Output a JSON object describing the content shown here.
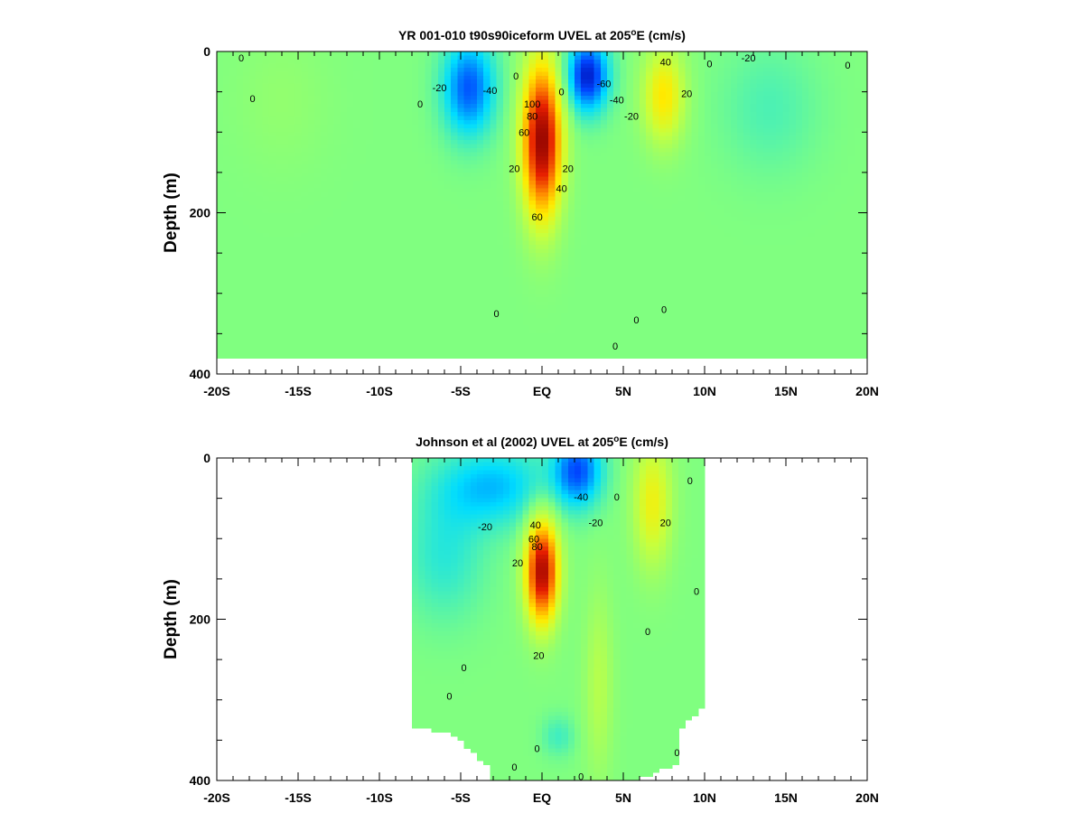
{
  "chart_data": [
    {
      "type": "heatmap",
      "title_main": "YR 001-010 t90s90iceform UVEL at 205",
      "title_sup": "o",
      "title_tail": "E (cm/s)",
      "ylabel": "Depth (m)",
      "x_ticks": [
        "-20S",
        "-15S",
        "-10S",
        "-5S",
        "EQ",
        "5N",
        "10N",
        "15N",
        "20N"
      ],
      "y_ticks": [
        "0",
        "200",
        "400"
      ],
      "xlim": [
        -20,
        20
      ],
      "ylim": [
        0,
        400
      ],
      "y_inverted": true,
      "data_max_depth": 380,
      "features": [
        {
          "label": "equatorial undercurrent",
          "lat": 0,
          "depth": 110,
          "sx": 1.2,
          "sz": 95,
          "v": 115
        },
        {
          "label": "south equatorial current south",
          "lat": -4.5,
          "depth": 45,
          "sx": 1.6,
          "sz": 60,
          "v": -55
        },
        {
          "label": "south equatorial current north",
          "lat": 2.8,
          "depth": 30,
          "sx": 1.3,
          "sz": 45,
          "v": -70
        },
        {
          "label": "north equatorial countercurrent",
          "lat": 7.5,
          "depth": 55,
          "sx": 1.3,
          "sz": 60,
          "v": 45
        },
        {
          "label": "weak westward 14N",
          "lat": 14,
          "depth": 70,
          "sx": 3,
          "sz": 80,
          "v": -12
        },
        {
          "label": "weak eastward 16S",
          "lat": -16,
          "depth": 60,
          "sx": 3,
          "sz": 90,
          "v": 6
        }
      ],
      "contour_labels": [
        {
          "text": "0",
          "lat": -18.5,
          "depth": 8
        },
        {
          "text": "0",
          "lat": -17.8,
          "depth": 58
        },
        {
          "text": "-20",
          "lat": -6.3,
          "depth": 45
        },
        {
          "text": "-40",
          "lat": -3.2,
          "depth": 48
        },
        {
          "text": "0",
          "lat": -7.5,
          "depth": 65
        },
        {
          "text": "0",
          "lat": -1.6,
          "depth": 30
        },
        {
          "text": "100",
          "lat": -0.6,
          "depth": 65
        },
        {
          "text": "80",
          "lat": -0.6,
          "depth": 80
        },
        {
          "text": "60",
          "lat": -1.1,
          "depth": 100
        },
        {
          "text": "20",
          "lat": -1.7,
          "depth": 145
        },
        {
          "text": "20",
          "lat": 1.6,
          "depth": 145
        },
        {
          "text": "40",
          "lat": 1.2,
          "depth": 170
        },
        {
          "text": "60",
          "lat": -0.3,
          "depth": 205
        },
        {
          "text": "0",
          "lat": 1.2,
          "depth": 50
        },
        {
          "text": "-60",
          "lat": 3.8,
          "depth": 40
        },
        {
          "text": "-40",
          "lat": 4.6,
          "depth": 60
        },
        {
          "text": "-20",
          "lat": 5.5,
          "depth": 80
        },
        {
          "text": "40",
          "lat": 7.6,
          "depth": 13
        },
        {
          "text": "20",
          "lat": 8.9,
          "depth": 52
        },
        {
          "text": "-20",
          "lat": 12.7,
          "depth": 8
        },
        {
          "text": "0",
          "lat": 18.8,
          "depth": 17
        },
        {
          "text": "0",
          "lat": 10.3,
          "depth": 15
        },
        {
          "text": "0",
          "lat": -2.8,
          "depth": 325
        },
        {
          "text": "0",
          "lat": 5.8,
          "depth": 333
        },
        {
          "text": "0",
          "lat": 7.5,
          "depth": 320
        },
        {
          "text": "0",
          "lat": 4.5,
          "depth": 365
        }
      ]
    },
    {
      "type": "heatmap",
      "title_main": "Johnson et al (2002) UVEL at 205",
      "title_sup": "o",
      "title_tail": "E (cm/s)",
      "ylabel": "Depth (m)",
      "x_ticks": [
        "-20S",
        "-15S",
        "-10S",
        "-5S",
        "EQ",
        "5N",
        "10N",
        "15N",
        "20N"
      ],
      "y_ticks": [
        "0",
        "200",
        "400"
      ],
      "xlim": [
        -20,
        20
      ],
      "ylim": [
        0,
        400
      ],
      "y_inverted": true,
      "data_lat_range": [
        -8,
        10
      ],
      "features": [
        {
          "label": "equatorial undercurrent",
          "lat": 0,
          "depth": 140,
          "sx": 1.0,
          "sz": 65,
          "v": 110
        },
        {
          "label": "south equatorial current north",
          "lat": 2.2,
          "depth": 15,
          "sx": 1.5,
          "sz": 45,
          "v": -55
        },
        {
          "label": "south equatorial current south",
          "lat": -3,
          "depth": 35,
          "sx": 3.5,
          "sz": 50,
          "v": -35
        },
        {
          "label": "north equatorial countercurrent",
          "lat": 6.8,
          "depth": 55,
          "sx": 1.2,
          "sz": 80,
          "v": 38
        },
        {
          "label": "yellow tongue",
          "lat": 3.5,
          "depth": 280,
          "sx": 0.9,
          "sz": 120,
          "v": 18
        },
        {
          "label": "cool patch",
          "lat": 1,
          "depth": 345,
          "sx": 1.0,
          "sz": 25,
          "v": -15
        },
        {
          "label": "background",
          "lat": -6,
          "depth": 120,
          "sx": 2.5,
          "sz": 80,
          "v": -20
        }
      ],
      "contour_labels": [
        {
          "text": "0",
          "lat": 4.6,
          "depth": 48
        },
        {
          "text": "-40",
          "lat": 2.4,
          "depth": 48
        },
        {
          "text": "-20",
          "lat": 3.3,
          "depth": 80
        },
        {
          "text": "-20",
          "lat": -3.5,
          "depth": 85
        },
        {
          "text": "40",
          "lat": -0.4,
          "depth": 83
        },
        {
          "text": "60",
          "lat": -0.5,
          "depth": 100
        },
        {
          "text": "80",
          "lat": -0.3,
          "depth": 110
        },
        {
          "text": "20",
          "lat": -1.5,
          "depth": 130
        },
        {
          "text": "20",
          "lat": -0.2,
          "depth": 245
        },
        {
          "text": "20",
          "lat": 7.6,
          "depth": 80
        },
        {
          "text": "0",
          "lat": 9.1,
          "depth": 28
        },
        {
          "text": "0",
          "lat": 9.5,
          "depth": 165
        },
        {
          "text": "0",
          "lat": 6.5,
          "depth": 215
        },
        {
          "text": "0",
          "lat": -4.8,
          "depth": 260
        },
        {
          "text": "0",
          "lat": -5.7,
          "depth": 295
        },
        {
          "text": "0",
          "lat": -1.7,
          "depth": 383
        },
        {
          "text": "0",
          "lat": -0.3,
          "depth": 360
        },
        {
          "text": "0",
          "lat": 8.3,
          "depth": 365
        },
        {
          "text": "0",
          "lat": 2.4,
          "depth": 395
        }
      ]
    }
  ]
}
